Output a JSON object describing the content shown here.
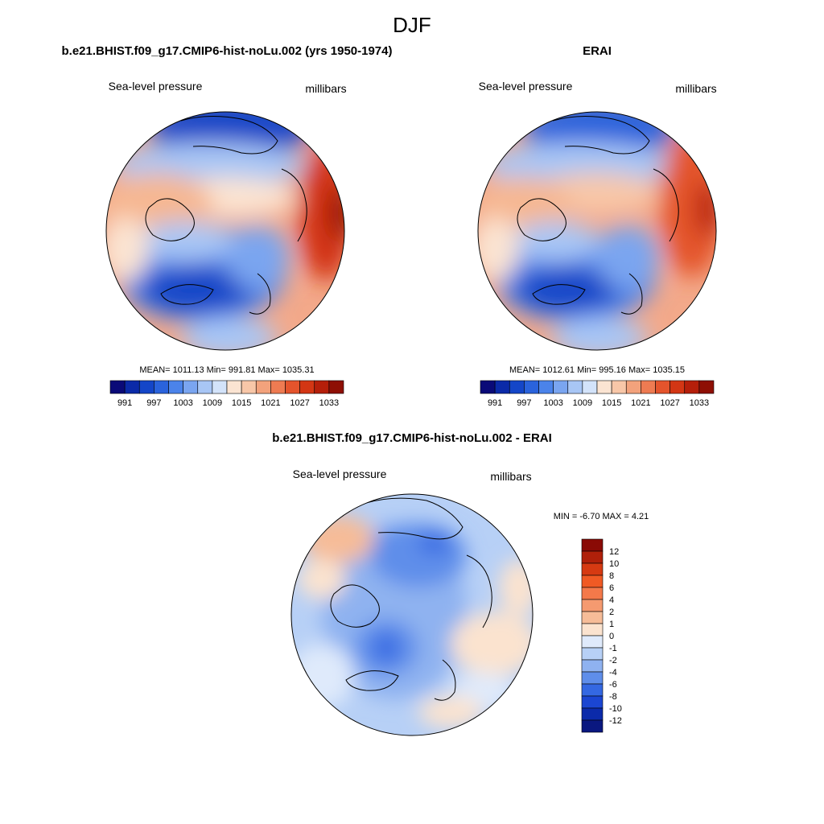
{
  "figure": {
    "title": "DJF"
  },
  "panels": [
    {
      "title": "b.e21.BHIST.f09_g17.CMIP6-hist-noLu.002 (yrs 1950-1974)",
      "variable": "Sea-level pressure",
      "units": "millibars",
      "stats": "MEAN= 1011.13  Min= 991.81  Max= 1035.31"
    },
    {
      "title": "ERAI",
      "variable": "Sea-level pressure",
      "units": "millibars",
      "stats": "MEAN= 1012.61  Min= 995.16  Max= 1035.15"
    },
    {
      "title": "b.e21.BHIST.f09_g17.CMIP6-hist-noLu.002 - ERAI",
      "variable": "Sea-level pressure",
      "units": "millibars",
      "stats": "MIN =  -6.70 MAX =   4.21"
    }
  ],
  "colorbars": {
    "absolute": {
      "labels": [
        "991",
        "997",
        "1003",
        "1009",
        "1015",
        "1021",
        "1027",
        "1033"
      ],
      "colors": [
        "#0a0a78",
        "#0b2aa8",
        "#1446c8",
        "#2a63dc",
        "#4b83ea",
        "#7aa5f0",
        "#a8c6f5",
        "#d3e3fa",
        "#fbe4d2",
        "#f8c7a8",
        "#f3a27c",
        "#ee7b52",
        "#e4542c",
        "#d33614",
        "#b51f0a",
        "#8e0f05"
      ],
      "values": [
        991,
        997,
        1003,
        1009,
        1015,
        1021,
        1027,
        1033
      ]
    },
    "difference": {
      "labels": [
        "12",
        "10",
        "8",
        "6",
        "4",
        "2",
        "1",
        "0",
        "-1",
        "-2",
        "-4",
        "-6",
        "-8",
        "-10",
        "-12"
      ],
      "colors_top_to_bottom": [
        "#8a0a05",
        "#b0200a",
        "#d63a12",
        "#f05a24",
        "#f4794a",
        "#f59a70",
        "#f6bc98",
        "#fbe3cf",
        "#dfeafb",
        "#b7d0f6",
        "#8fb2f0",
        "#5f8eea",
        "#3468e2",
        "#1b46d2",
        "#0b2aaa",
        "#0a1880"
      ],
      "values": [
        12,
        10,
        8,
        6,
        4,
        2,
        1,
        0,
        -1,
        -2,
        -4,
        -6,
        -8,
        -10,
        -12
      ]
    }
  },
  "chart_data": [
    {
      "type": "heatmap",
      "title": "b.e21.BHIST.f09_g17.CMIP6-hist-noLu.002 (yrs 1950-1974)",
      "variable": "Sea-level pressure",
      "units": "millibars",
      "projection": "north polar stereographic",
      "mean": 1011.13,
      "min": 991.81,
      "max": 1035.31,
      "colorbar_levels": [
        991,
        997,
        1003,
        1009,
        1015,
        1021,
        1027,
        1033
      ]
    },
    {
      "type": "heatmap",
      "title": "ERAI",
      "variable": "Sea-level pressure",
      "units": "millibars",
      "projection": "north polar stereographic",
      "mean": 1012.61,
      "min": 995.16,
      "max": 1035.15,
      "colorbar_levels": [
        991,
        997,
        1003,
        1009,
        1015,
        1021,
        1027,
        1033
      ]
    },
    {
      "type": "heatmap",
      "title": "b.e21.BHIST.f09_g17.CMIP6-hist-noLu.002 - ERAI",
      "variable": "Sea-level pressure",
      "units": "millibars",
      "projection": "north polar stereographic",
      "min": -6.7,
      "max": 4.21,
      "colorbar_levels": [
        12,
        10,
        8,
        6,
        4,
        2,
        1,
        0,
        -1,
        -2,
        -4,
        -6,
        -8,
        -10,
        -12
      ]
    }
  ]
}
